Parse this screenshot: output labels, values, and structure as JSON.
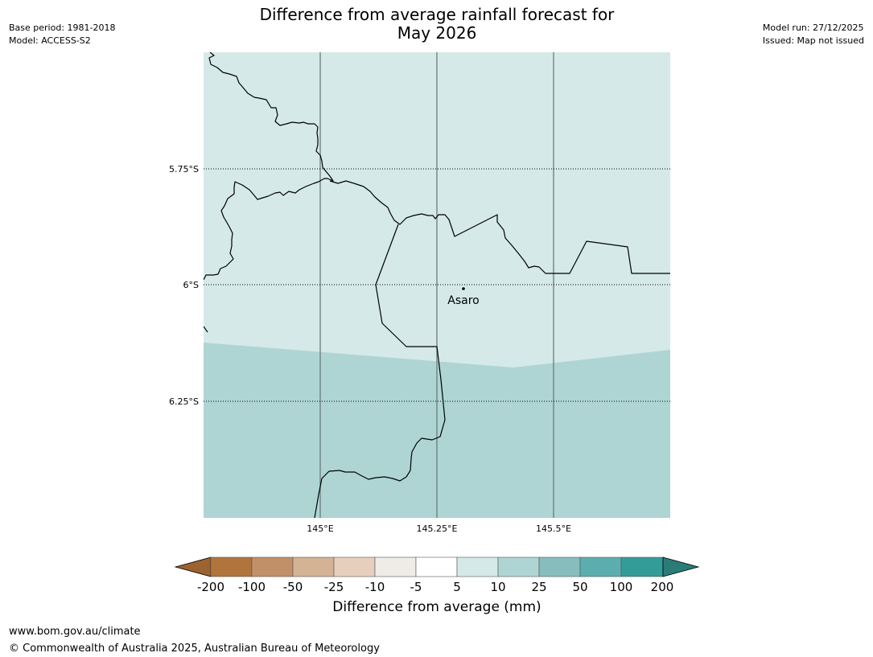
{
  "header": {
    "title_line1": "Difference from average rainfall forecast for",
    "title_line2": "May 2026",
    "base_period": "Base period: 1981-2018",
    "model": "Model: ACCESS-S2",
    "model_run": "Model run: 27/12/2025",
    "issued": "Issued: Map not issued"
  },
  "map": {
    "lat_labels": [
      "5.75°S",
      "6°S",
      "6.25°S"
    ],
    "lon_labels": [
      "145°E",
      "145.25°E",
      "145.5°E"
    ],
    "place_label": "Asaro"
  },
  "legend": {
    "title": "Difference from average (mm)",
    "ticks": [
      "-200",
      "-100",
      "-50",
      "-25",
      "-10",
      "-5",
      "5",
      "10",
      "25",
      "50",
      "100",
      "200"
    ],
    "colors": [
      "#9c6230",
      "#b0743c",
      "#c29068",
      "#d4b394",
      "#e6cfbd",
      "#efebe7",
      "#ffffff",
      "#d5e9e8",
      "#aed5d4",
      "#87bebd",
      "#5caeae",
      "#339b98",
      "#2b7b79"
    ]
  },
  "footer": {
    "website": "www.bom.gov.au/climate",
    "copyright": "© Commonwealth of Australia 2025, Australian Bureau of Meteorology"
  }
}
